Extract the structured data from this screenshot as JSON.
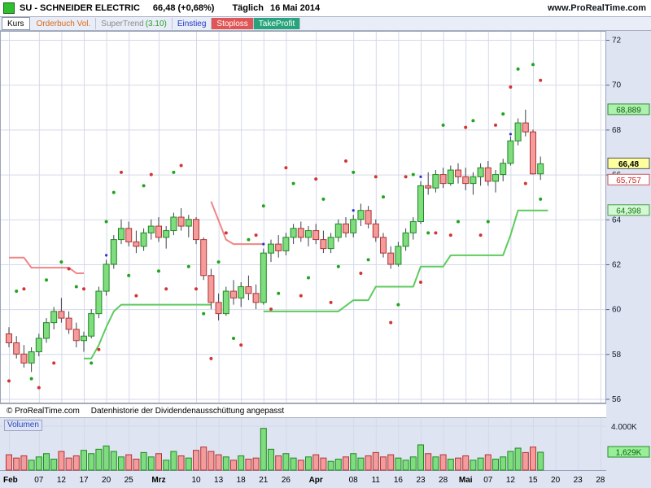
{
  "header": {
    "title": "SU - SCHNEIDER ELECTRIC",
    "price": "66,48 (+0,68%)",
    "period": "Täglich",
    "date": "16 Mai 2014",
    "site": "www.ProRealTime.com"
  },
  "toolbar": {
    "items": [
      {
        "name": "kurs",
        "boxed": true,
        "parts": [
          {
            "t": "Kurs",
            "c": "#000000"
          }
        ]
      },
      {
        "name": "orderbuch-vol",
        "parts": [
          {
            "t": "Orderbuch Vol.",
            "c": "#d96a1a"
          }
        ]
      },
      {
        "name": "supertrend",
        "parts": [
          {
            "t": "SuperTrend ",
            "c": "#8a8a8a"
          },
          {
            "t": "(3.10)",
            "c": "#2aa02a"
          }
        ]
      },
      {
        "name": "einstieg",
        "parts": [
          {
            "t": "Einstieg",
            "c": "#2038c8"
          }
        ]
      },
      {
        "name": "stoploss",
        "bg": "#e05555",
        "parts": [
          {
            "t": "Stoploss",
            "c": "#ffffff"
          }
        ]
      },
      {
        "name": "takeprofit",
        "bg": "#28a47c",
        "parts": [
          {
            "t": "TakeProfit",
            "c": "#ffffff"
          }
        ]
      }
    ]
  },
  "footer": {
    "copyright": "© ProRealTime.com",
    "note": "Datenhistorie der Dividendenausschüttung angepasst"
  },
  "volume_panel": {
    "label": "Volumen"
  },
  "price_tags": [
    {
      "name": "takeprofit-tag",
      "label": "68,889",
      "price": 68.889,
      "bg": "#aef0ae",
      "color": "#0b5e0b",
      "border": "#2c8c2c"
    },
    {
      "name": "last-price-tag",
      "label": "66,48",
      "price": 66.48,
      "bg": "#ffff9e",
      "color": "#000000",
      "border": "#555555",
      "bold": true
    },
    {
      "name": "stoploss-tag",
      "label": "65,757",
      "price": 65.757,
      "bg": "#ffffff",
      "color": "#cc2222",
      "border": "#cc5555"
    },
    {
      "name": "supertrend-tag",
      "label": "64,398",
      "price": 64.398,
      "bg": "#d4f7d4",
      "color": "#117711",
      "border": "#4aa04a"
    }
  ],
  "chart_data": {
    "type": "candlestick",
    "title": "SU - SCHNEIDER ELECTRIC, Täglich, 16 Mai 2014",
    "ylim": [
      55.8,
      72.4
    ],
    "yticks": [
      72,
      70,
      68,
      66,
      64,
      62,
      60,
      58,
      56
    ],
    "slots": 80,
    "xticks": [
      {
        "l": "Feb",
        "i": 0,
        "b": 1
      },
      {
        "l": "07",
        "i": 4
      },
      {
        "l": "12",
        "i": 7
      },
      {
        "l": "17",
        "i": 10
      },
      {
        "l": "20",
        "i": 13
      },
      {
        "l": "25",
        "i": 16
      },
      {
        "l": "Mrz",
        "i": 20,
        "b": 1
      },
      {
        "l": "10",
        "i": 25
      },
      {
        "l": "13",
        "i": 28
      },
      {
        "l": "18",
        "i": 31
      },
      {
        "l": "21",
        "i": 34
      },
      {
        "l": "26",
        "i": 37
      },
      {
        "l": "Apr",
        "i": 41,
        "b": 1
      },
      {
        "l": "08",
        "i": 46
      },
      {
        "l": "11",
        "i": 49
      },
      {
        "l": "16",
        "i": 52
      },
      {
        "l": "23",
        "i": 55
      },
      {
        "l": "28",
        "i": 58
      },
      {
        "l": "Mai",
        "i": 61,
        "b": 1
      },
      {
        "l": "07",
        "i": 64
      },
      {
        "l": "12",
        "i": 67
      },
      {
        "l": "15",
        "i": 70
      },
      {
        "l": "20",
        "i": 73
      },
      {
        "l": "23",
        "i": 76
      },
      {
        "l": "28",
        "i": 79
      }
    ],
    "candles": [
      [
        58.9,
        59.2,
        58.3,
        58.5
      ],
      [
        58.5,
        58.8,
        57.8,
        58.0
      ],
      [
        58.0,
        58.4,
        57.4,
        57.6
      ],
      [
        57.6,
        58.3,
        57.2,
        58.1
      ],
      [
        58.1,
        58.9,
        57.9,
        58.7
      ],
      [
        58.7,
        59.6,
        58.5,
        59.4
      ],
      [
        59.4,
        60.1,
        59.1,
        59.9
      ],
      [
        59.9,
        60.5,
        59.4,
        59.6
      ],
      [
        59.6,
        59.9,
        58.9,
        59.1
      ],
      [
        59.1,
        59.4,
        58.3,
        58.6
      ],
      [
        58.6,
        59.0,
        58.1,
        58.8
      ],
      [
        58.8,
        60.0,
        58.7,
        59.8
      ],
      [
        59.8,
        61.0,
        59.6,
        60.8
      ],
      [
        60.8,
        62.2,
        60.6,
        62.0
      ],
      [
        62.0,
        63.3,
        61.8,
        63.1
      ],
      [
        63.1,
        64.0,
        62.9,
        63.6
      ],
      [
        63.6,
        63.9,
        62.8,
        63.0
      ],
      [
        63.0,
        63.5,
        62.5,
        62.8
      ],
      [
        62.8,
        63.6,
        62.6,
        63.4
      ],
      [
        63.4,
        64.0,
        63.1,
        63.7
      ],
      [
        63.7,
        64.1,
        63.0,
        63.2
      ],
      [
        63.2,
        63.7,
        62.7,
        63.5
      ],
      [
        63.5,
        64.3,
        63.3,
        64.1
      ],
      [
        64.1,
        64.5,
        63.5,
        63.7
      ],
      [
        63.7,
        64.2,
        63.2,
        64.0
      ],
      [
        64.0,
        64.1,
        62.9,
        63.1
      ],
      [
        63.1,
        63.2,
        61.3,
        61.5
      ],
      [
        61.5,
        61.8,
        60.0,
        60.3
      ],
      [
        60.3,
        60.7,
        59.5,
        59.8
      ],
      [
        59.8,
        61.0,
        59.7,
        60.8
      ],
      [
        60.8,
        61.3,
        60.2,
        60.5
      ],
      [
        60.5,
        61.2,
        60.1,
        61.0
      ],
      [
        61.0,
        61.5,
        60.4,
        60.7
      ],
      [
        60.7,
        61.1,
        60.0,
        60.3
      ],
      [
        60.3,
        62.7,
        60.2,
        62.5
      ],
      [
        62.5,
        63.1,
        62.1,
        62.9
      ],
      [
        62.9,
        63.3,
        62.3,
        62.6
      ],
      [
        62.6,
        63.4,
        62.4,
        63.2
      ],
      [
        63.2,
        63.8,
        62.9,
        63.6
      ],
      [
        63.6,
        63.9,
        63.0,
        63.2
      ],
      [
        63.2,
        63.7,
        62.8,
        63.5
      ],
      [
        63.5,
        63.8,
        62.9,
        63.1
      ],
      [
        63.1,
        63.5,
        62.5,
        62.7
      ],
      [
        62.7,
        63.4,
        62.5,
        63.2
      ],
      [
        63.2,
        64.0,
        63.0,
        63.8
      ],
      [
        63.8,
        64.1,
        63.2,
        63.4
      ],
      [
        63.4,
        64.2,
        63.2,
        64.0
      ],
      [
        64.0,
        64.7,
        63.7,
        64.4
      ],
      [
        64.4,
        64.6,
        63.6,
        63.8
      ],
      [
        63.8,
        64.0,
        63.0,
        63.2
      ],
      [
        63.2,
        63.4,
        62.3,
        62.5
      ],
      [
        62.5,
        62.8,
        61.8,
        62.0
      ],
      [
        62.0,
        63.0,
        61.9,
        62.8
      ],
      [
        62.8,
        63.6,
        62.6,
        63.4
      ],
      [
        63.4,
        64.1,
        63.1,
        63.9
      ],
      [
        63.9,
        65.7,
        63.8,
        65.5
      ],
      [
        65.5,
        66.1,
        65.1,
        65.4
      ],
      [
        65.4,
        66.2,
        65.2,
        66.0
      ],
      [
        66.0,
        66.3,
        65.4,
        65.6
      ],
      [
        65.6,
        66.4,
        65.5,
        66.2
      ],
      [
        66.2,
        66.5,
        65.6,
        65.9
      ],
      [
        65.9,
        66.3,
        65.3,
        65.6
      ],
      [
        65.6,
        66.1,
        65.1,
        65.9
      ],
      [
        65.9,
        66.5,
        65.5,
        66.3
      ],
      [
        66.3,
        66.6,
        65.5,
        65.7
      ],
      [
        65.7,
        66.2,
        65.2,
        66.0
      ],
      [
        66.0,
        66.7,
        65.7,
        66.5
      ],
      [
        66.5,
        67.7,
        66.4,
        67.5
      ],
      [
        67.5,
        68.5,
        67.3,
        68.3
      ],
      [
        68.3,
        68.889,
        67.7,
        67.9
      ],
      [
        67.9,
        68.0,
        66.0,
        66.03
      ],
      [
        66.03,
        66.8,
        65.757,
        66.48
      ]
    ],
    "supertrend": {
      "segments": [
        {
          "dir": "down",
          "points": [
            [
              0,
              62.3
            ],
            [
              2,
              62.3
            ],
            [
              3,
              61.85
            ],
            [
              8,
              61.85
            ],
            [
              9,
              61.6
            ],
            [
              10,
              61.6
            ]
          ]
        },
        {
          "dir": "up",
          "points": [
            [
              10,
              57.8
            ],
            [
              11,
              57.8
            ],
            [
              12,
              58.4
            ],
            [
              13,
              59.2
            ],
            [
              14,
              59.9
            ],
            [
              15,
              60.2
            ],
            [
              27,
              60.2
            ]
          ]
        },
        {
          "dir": "down",
          "points": [
            [
              27,
              64.8
            ],
            [
              29,
              63.1
            ],
            [
              30,
              62.9
            ],
            [
              34,
              62.9
            ]
          ]
        },
        {
          "dir": "up",
          "points": [
            [
              34,
              59.9
            ],
            [
              44,
              59.9
            ],
            [
              46,
              60.4
            ],
            [
              48,
              60.4
            ],
            [
              49,
              61.0
            ],
            [
              54,
              61.0
            ],
            [
              55,
              61.9
            ],
            [
              58,
              61.9
            ],
            [
              59,
              62.4
            ],
            [
              66,
              62.4
            ],
            [
              67,
              63.3
            ],
            [
              68,
              64.4
            ],
            [
              72,
              64.4
            ]
          ]
        }
      ],
      "current_value": 64.398
    },
    "signals": {
      "green": [
        [
          1,
          60.8
        ],
        [
          3,
          56.9
        ],
        [
          5,
          61.3
        ],
        [
          7,
          62.1
        ],
        [
          9,
          61.0
        ],
        [
          11,
          57.6
        ],
        [
          13,
          63.9
        ],
        [
          14,
          65.2
        ],
        [
          16,
          61.5
        ],
        [
          18,
          65.5
        ],
        [
          20,
          61.7
        ],
        [
          22,
          66.1
        ],
        [
          24,
          61.9
        ],
        [
          26,
          59.8
        ],
        [
          28,
          62.1
        ],
        [
          30,
          58.7
        ],
        [
          32,
          63.1
        ],
        [
          34,
          64.6
        ],
        [
          36,
          60.7
        ],
        [
          38,
          65.6
        ],
        [
          40,
          61.4
        ],
        [
          42,
          64.9
        ],
        [
          44,
          61.9
        ],
        [
          46,
          66.1
        ],
        [
          48,
          62.2
        ],
        [
          50,
          65.0
        ],
        [
          52,
          60.2
        ],
        [
          54,
          66.0
        ],
        [
          56,
          63.4
        ],
        [
          58,
          68.2
        ],
        [
          60,
          63.9
        ],
        [
          62,
          68.4
        ],
        [
          64,
          63.9
        ],
        [
          66,
          68.7
        ],
        [
          68,
          70.7
        ],
        [
          70,
          70.9
        ],
        [
          71,
          64.9
        ]
      ],
      "red": [
        [
          0,
          56.8
        ],
        [
          2,
          60.9
        ],
        [
          4,
          56.5
        ],
        [
          6,
          57.6
        ],
        [
          8,
          61.8
        ],
        [
          10,
          60.9
        ],
        [
          12,
          58.2
        ],
        [
          15,
          66.1
        ],
        [
          17,
          60.6
        ],
        [
          19,
          66.0
        ],
        [
          21,
          60.9
        ],
        [
          23,
          66.4
        ],
        [
          25,
          60.9
        ],
        [
          27,
          57.8
        ],
        [
          29,
          63.4
        ],
        [
          31,
          58.4
        ],
        [
          33,
          63.3
        ],
        [
          35,
          60.0
        ],
        [
          37,
          66.3
        ],
        [
          39,
          60.6
        ],
        [
          41,
          65.8
        ],
        [
          43,
          60.3
        ],
        [
          45,
          66.6
        ],
        [
          47,
          61.6
        ],
        [
          49,
          65.9
        ],
        [
          51,
          59.4
        ],
        [
          53,
          65.9
        ],
        [
          55,
          61.2
        ],
        [
          57,
          63.4
        ],
        [
          59,
          63.3
        ],
        [
          61,
          68.1
        ],
        [
          63,
          63.3
        ],
        [
          65,
          68.2
        ],
        [
          67,
          69.9
        ],
        [
          69,
          65.6
        ],
        [
          71,
          70.2
        ]
      ],
      "blue": [
        [
          13,
          62.4
        ],
        [
          34,
          62.9
        ],
        [
          46,
          64.4
        ],
        [
          55,
          65.9
        ],
        [
          67,
          67.8
        ]
      ]
    },
    "volume": {
      "axis_label": "4.000K",
      "last_label": "1,629K",
      "scale_max": 4.0,
      "values": [
        1.4,
        1.1,
        1.3,
        0.9,
        1.2,
        1.5,
        1.0,
        1.7,
        1.1,
        1.3,
        1.8,
        1.5,
        1.9,
        2.2,
        1.7,
        1.2,
        1.4,
        1.0,
        1.6,
        1.2,
        1.5,
        0.9,
        1.7,
        1.3,
        1.1,
        1.8,
        2.1,
        1.7,
        1.4,
        1.2,
        0.9,
        1.3,
        1.0,
        1.1,
        3.8,
        1.9,
        1.3,
        1.5,
        1.1,
        0.9,
        1.2,
        1.4,
        1.1,
        0.8,
        1.0,
        1.2,
        1.5,
        1.1,
        1.3,
        1.6,
        1.2,
        1.4,
        1.1,
        0.9,
        1.2,
        2.3,
        1.5,
        1.2,
        1.4,
        1.0,
        1.1,
        1.3,
        0.9,
        1.1,
        1.4,
        1.0,
        1.2,
        1.7,
        2.0,
        1.6,
        2.1,
        1.629
      ]
    },
    "colors": {
      "up_fill": "#7fdc7f",
      "up_stroke": "#1d8a1d",
      "down_fill": "#f49b9b",
      "down_stroke": "#b03434",
      "st_up": "#5ecb5e",
      "st_down": "#f28585",
      "grid": "#d3d9e8",
      "frame": "#9aa3ba",
      "wick": "#3a4150",
      "sig_green": "#1fa51f",
      "sig_red": "#d23535",
      "sig_blue": "#2433cc",
      "panel_bg": "#dee4f2",
      "plot_bg": "#ffffff"
    }
  }
}
